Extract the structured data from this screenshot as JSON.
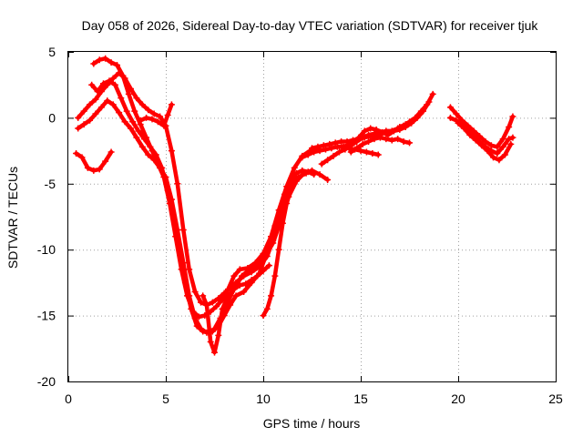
{
  "chart_data": {
    "type": "scatter",
    "title": "Day 058 of 2026, Sidereal Day-to-day VTEC variation (SDTVAR) for receiver tjuk",
    "xlabel": "GPS time / hours",
    "ylabel": "SDTVAR / TECUs",
    "xlim": [
      0,
      25
    ],
    "ylim": [
      -20,
      5
    ],
    "xticks": [
      0,
      5,
      10,
      15,
      20,
      25
    ],
    "yticks": [
      5,
      0,
      -5,
      -10,
      -15,
      -20
    ],
    "grid": true,
    "marker": "+",
    "color": "#ff0000",
    "series": [
      {
        "x": [
          0.5,
          0.8,
          1.1,
          1.4,
          1.7,
          2.0,
          2.3,
          2.6,
          2.9,
          3.2,
          3.5,
          3.8,
          4.1,
          4.4,
          4.7,
          5.0,
          5.3,
          5.6,
          5.9,
          6.2,
          6.5,
          6.8,
          7.1,
          7.4,
          7.7,
          8.0,
          8.3,
          8.6,
          9.0,
          9.4,
          9.8,
          10.2,
          10.5,
          10.8,
          11.1,
          11.4,
          11.7,
          12.0,
          12.3,
          12.6
        ],
        "y": [
          0.0,
          0.5,
          1.0,
          1.4,
          2.0,
          2.5,
          3.0,
          3.4,
          3.0,
          2.2,
          1.5,
          1.0,
          0.6,
          0.3,
          0.1,
          -0.6,
          -2.5,
          -5.0,
          -8.5,
          -11.5,
          -13.2,
          -14.0,
          -14.2,
          -14.0,
          -13.7,
          -13.3,
          -12.9,
          -12.5,
          -12.0,
          -11.7,
          -11.3,
          -10.5,
          -9.3,
          -7.5,
          -5.8,
          -4.8,
          -4.2,
          -4.0,
          -4.1,
          -4.3
        ]
      },
      {
        "x": [
          1.3,
          1.6,
          1.9,
          2.2,
          2.5,
          2.8,
          3.1,
          3.4,
          3.7,
          4.0,
          4.3,
          4.6,
          4.9,
          5.2,
          5.5,
          5.8,
          6.1,
          6.4,
          6.7,
          7.0,
          7.3,
          7.6,
          7.9,
          8.2,
          8.5,
          8.8,
          9.2,
          9.6,
          10.0,
          10.4,
          10.8,
          11.2,
          11.6,
          12.0,
          12.4,
          12.8
        ],
        "y": [
          4.1,
          4.4,
          4.5,
          4.2,
          4.0,
          3.2,
          1.8,
          0.5,
          -0.5,
          -1.5,
          -2.5,
          -3.5,
          -4.5,
          -6.5,
          -9.0,
          -11.5,
          -13.5,
          -14.7,
          -15.1,
          -15.0,
          -14.7,
          -14.3,
          -13.8,
          -13.0,
          -12.0,
          -11.5,
          -11.4,
          -11.0,
          -10.3,
          -9.0,
          -7.0,
          -5.2,
          -3.8,
          -2.9,
          -2.5,
          -2.3
        ]
      },
      {
        "x": [
          0.5,
          0.8,
          1.1,
          1.4,
          1.7,
          2.0,
          2.3,
          2.6,
          2.9,
          3.2,
          3.5,
          3.8,
          4.1,
          4.4,
          4.7,
          5.0,
          5.3,
          5.6,
          5.9,
          6.2,
          6.5,
          6.8,
          7.1,
          7.4,
          7.7,
          8.0,
          8.3,
          8.6,
          9.0,
          9.4,
          9.8,
          10.2,
          10.6,
          11.0,
          11.4,
          11.8,
          12.2
        ],
        "y": [
          -0.8,
          -0.5,
          -0.2,
          0.3,
          0.8,
          1.3,
          1.0,
          0.4,
          -0.3,
          -0.8,
          -1.5,
          -2.2,
          -2.8,
          -3.2,
          -3.8,
          -4.5,
          -6.2,
          -8.5,
          -11.0,
          -13.5,
          -15.2,
          -16.0,
          -16.3,
          -16.2,
          -15.8,
          -15.0,
          -14.2,
          -13.5,
          -13.2,
          -12.5,
          -11.8,
          -10.2,
          -8.2,
          -6.5,
          -5.2,
          -4.5,
          -4.2
        ]
      },
      {
        "x": [
          1.2,
          1.5,
          1.8,
          2.1,
          2.4,
          2.7,
          3.0,
          3.3,
          3.6,
          3.9,
          4.2,
          4.5,
          4.8,
          5.1,
          5.4,
          5.7,
          6.0,
          6.3,
          6.6,
          6.9,
          7.2,
          7.5,
          7.8,
          8.1,
          8.5,
          8.9,
          9.3,
          9.7,
          10.1,
          10.5,
          10.9,
          11.3,
          11.7,
          12.1,
          12.5,
          12.9,
          13.3
        ],
        "y": [
          2.5,
          2.0,
          2.6,
          2.8,
          2.5,
          1.5,
          0.5,
          -0.3,
          -1.0,
          -1.6,
          -2.2,
          -2.8,
          -3.8,
          -5.5,
          -7.5,
          -10.0,
          -12.5,
          -14.5,
          -15.8,
          -16.2,
          -16.3,
          -16.0,
          -15.2,
          -14.2,
          -13.0,
          -12.0,
          -11.5,
          -11.2,
          -10.5,
          -9.5,
          -7.8,
          -6.0,
          -4.8,
          -4.2,
          -4.0,
          -4.3,
          -4.7
        ]
      },
      {
        "x": [
          0.4,
          0.7,
          1.0,
          1.3,
          1.6,
          1.9,
          2.2
        ],
        "y": [
          -2.7,
          -3.0,
          -3.8,
          -4.0,
          -3.9,
          -3.3,
          -2.6
        ]
      },
      {
        "x": [
          3.7,
          4.0,
          4.3,
          4.6,
          4.9,
          5.1,
          5.3
        ],
        "y": [
          -0.2,
          0.0,
          -0.1,
          -0.3,
          -0.6,
          0.2,
          1.0
        ]
      },
      {
        "x": [
          6.9,
          7.1,
          7.3,
          7.5,
          7.7,
          7.9,
          8.2,
          8.5,
          8.8,
          9.1,
          9.4,
          9.7,
          10.0,
          10.3
        ],
        "y": [
          -13.5,
          -14.2,
          -17.0,
          -17.8,
          -16.5,
          -14.5,
          -13.5,
          -13.0,
          -12.7,
          -12.6,
          -12.3,
          -12.0,
          -11.6,
          -11.2
        ]
      },
      {
        "x": [
          10.0,
          10.2,
          10.4,
          10.6,
          10.8,
          11.0,
          11.2,
          11.4,
          11.6
        ],
        "y": [
          -15.0,
          -14.5,
          -13.5,
          -12.0,
          -10.0,
          -8.0,
          -6.5,
          -5.5,
          -5.0
        ]
      },
      {
        "x": [
          12.5,
          12.8,
          13.1,
          13.4,
          13.7,
          14.0,
          14.3,
          14.6,
          14.9,
          15.2,
          15.5,
          15.8,
          16.1,
          16.4,
          16.7,
          17.0,
          17.3,
          17.6,
          17.9,
          18.2,
          18.5
        ],
        "y": [
          -2.3,
          -2.2,
          -2.1,
          -2.0,
          -1.9,
          -1.8,
          -1.8,
          -1.7,
          -1.6,
          -1.5,
          -1.4,
          -1.3,
          -1.2,
          -1.1,
          -1.0,
          -0.9,
          -0.7,
          -0.4,
          0.0,
          0.5,
          1.2
        ]
      },
      {
        "x": [
          13.0,
          13.3,
          13.6,
          13.9,
          14.2,
          14.5,
          14.8,
          15.1,
          15.4,
          15.7,
          16.0,
          16.3,
          16.6,
          16.9,
          17.2,
          17.5,
          17.8,
          18.1,
          18.4,
          18.7
        ],
        "y": [
          -3.5,
          -3.2,
          -2.9,
          -2.6,
          -2.4,
          -2.1,
          -1.8,
          -1.5,
          -1.3,
          -1.2,
          -1.1,
          -1.0,
          -1.0,
          -0.8,
          -0.6,
          -0.3,
          0.0,
          0.5,
          1.0,
          1.8
        ]
      },
      {
        "x": [
          14.0,
          14.3,
          14.6,
          14.9,
          15.2,
          15.5,
          15.8,
          16.1,
          16.4,
          16.7,
          17.0,
          17.3
        ],
        "y": [
          -2.2,
          -2.1,
          -1.9,
          -1.5,
          -1.0,
          -0.8,
          -0.9,
          -1.1,
          -1.3,
          -1.0,
          -0.7,
          -0.5
        ]
      },
      {
        "x": [
          14.5,
          14.8,
          15.1,
          15.4,
          15.7,
          16.0,
          16.3,
          16.6,
          16.9,
          17.2,
          17.5
        ],
        "y": [
          -2.6,
          -2.3,
          -2.0,
          -1.8,
          -1.6,
          -1.5,
          -1.6,
          -1.7,
          -1.6,
          -1.8,
          -1.9
        ]
      },
      {
        "x": [
          12.0,
          12.3,
          12.6,
          12.9,
          13.2,
          13.5,
          13.8,
          14.1,
          14.4,
          14.7,
          15.0,
          15.3,
          15.6,
          15.9
        ],
        "y": [
          -3.0,
          -2.8,
          -2.6,
          -2.5,
          -2.4,
          -2.3,
          -2.2,
          -2.2,
          -2.3,
          -2.4,
          -2.5,
          -2.6,
          -2.7,
          -2.8
        ]
      },
      {
        "x": [
          19.6,
          19.9,
          20.2,
          20.5,
          20.8,
          21.1,
          21.4,
          21.7,
          22.0,
          22.3,
          22.6,
          22.8
        ],
        "y": [
          0.8,
          0.3,
          -0.2,
          -0.6,
          -1.0,
          -1.4,
          -1.8,
          -2.1,
          -2.2,
          -1.6,
          -0.7,
          0.1
        ]
      },
      {
        "x": [
          19.6,
          19.9,
          20.2,
          20.5,
          20.8,
          21.1,
          21.4,
          21.7,
          22.0,
          22.3,
          22.6,
          22.8
        ],
        "y": [
          0.0,
          -0.2,
          -0.5,
          -0.9,
          -1.4,
          -1.8,
          -2.2,
          -2.5,
          -2.7,
          -2.2,
          -1.6,
          -1.5
        ]
      },
      {
        "x": [
          20.0,
          20.3,
          20.6,
          20.9,
          21.2,
          21.5,
          21.8,
          22.1,
          22.4,
          22.7
        ],
        "y": [
          -0.4,
          -0.8,
          -1.3,
          -1.7,
          -2.1,
          -2.5,
          -3.0,
          -3.2,
          -2.8,
          -2.0
        ]
      }
    ]
  }
}
